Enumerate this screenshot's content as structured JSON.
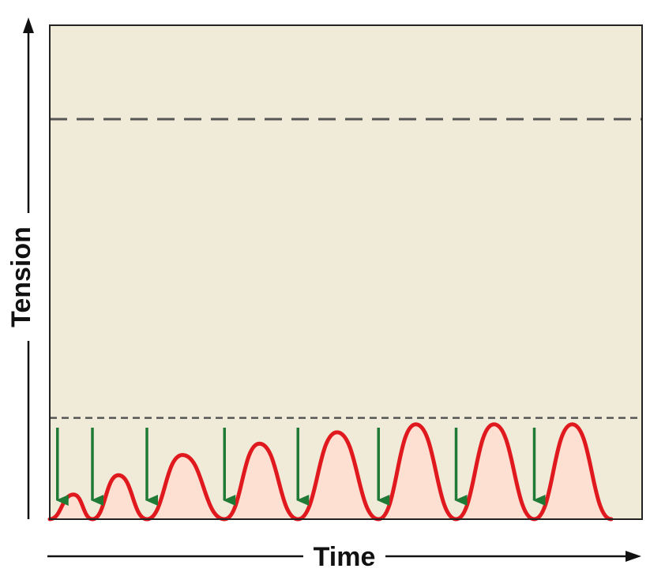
{
  "colors": {
    "plot_background": "#f0ead9",
    "frame": "#222222",
    "tension_curve": "#e0191e",
    "curve_fill": "#fde0d2",
    "stimulus_arrow": "#1f7a36",
    "reference_line": "#555555",
    "axis": "#111111"
  },
  "chart_data": {
    "type": "line",
    "xlabel": "Time",
    "ylabel": "Tension",
    "xlim": [
      0,
      100
    ],
    "ylim": [
      0,
      100
    ],
    "grid": false,
    "reference_lines": [
      {
        "style": "long-dash",
        "y": 81
      },
      {
        "style": "short-dash",
        "y": 20.5
      }
    ],
    "stimuli_x": [
      1.3,
      7.2,
      16.4,
      29.5,
      41.9,
      55.5,
      68.6,
      81.8
    ],
    "series": [
      {
        "peaks": [
          {
            "x": 4.0,
            "y": 5.0
          },
          {
            "x": 11.6,
            "y": 8.9
          },
          {
            "x": 22.4,
            "y": 13.0
          },
          {
            "x": 35.4,
            "y": 15.3
          },
          {
            "x": 48.5,
            "y": 17.6
          },
          {
            "x": 61.8,
            "y": 19.2
          },
          {
            "x": 75.0,
            "y": 19.2
          },
          {
            "x": 88.2,
            "y": 19.2
          }
        ],
        "troughs": [
          {
            "x": 0.0,
            "y": 0
          },
          {
            "x": 7.2,
            "y": 0
          },
          {
            "x": 16.4,
            "y": 0
          },
          {
            "x": 29.5,
            "y": 0
          },
          {
            "x": 41.9,
            "y": 0
          },
          {
            "x": 55.5,
            "y": 0
          },
          {
            "x": 68.6,
            "y": 0
          },
          {
            "x": 81.8,
            "y": 0
          },
          {
            "x": 94.8,
            "y": 0
          }
        ]
      }
    ]
  }
}
